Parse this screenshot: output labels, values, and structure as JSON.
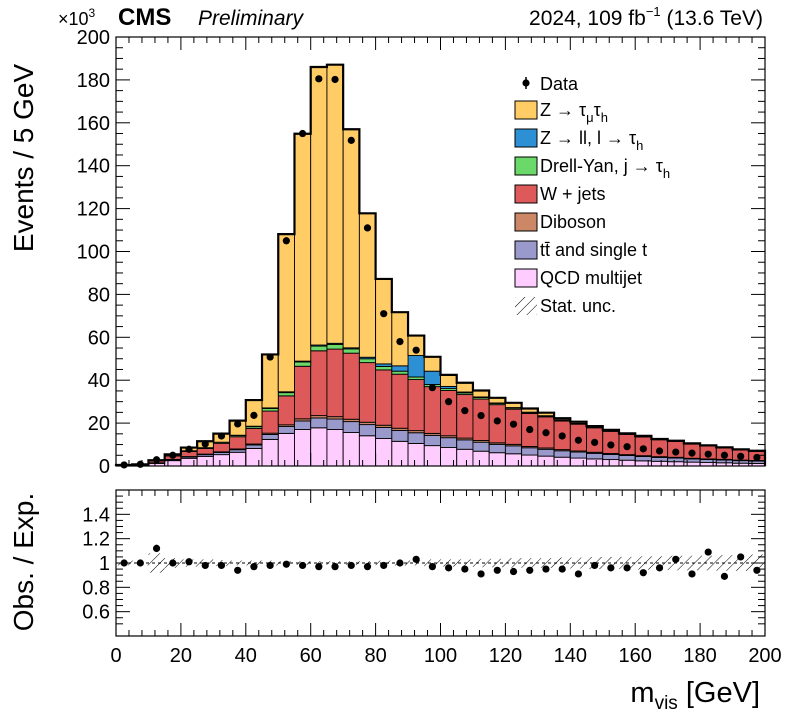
{
  "header": {
    "exp": "CMS",
    "status": "Preliminary",
    "lumi": "2024, 109 fb",
    "lumi_sup": "−1",
    "energy": " (13.6 TeV)",
    "multiplier": "×10",
    "multiplier_exp": "3"
  },
  "chart_data": [
    {
      "type": "bar",
      "stacked": true,
      "title": "",
      "xlabel": "",
      "ylabel": "Events / 5 GeV",
      "ylim": [
        0,
        200
      ],
      "y_scale": 1000,
      "yticks": [
        0,
        20,
        40,
        60,
        80,
        100,
        120,
        140,
        160,
        180,
        200
      ],
      "bin_edges": [
        0,
        5,
        10,
        15,
        20,
        25,
        30,
        35,
        40,
        45,
        50,
        55,
        60,
        65,
        70,
        75,
        80,
        85,
        90,
        95,
        100,
        105,
        110,
        115,
        120,
        125,
        130,
        135,
        140,
        145,
        150,
        155,
        160,
        165,
        170,
        175,
        180,
        185,
        190,
        195,
        200
      ],
      "series": [
        {
          "name": "QCD multijet",
          "key": "qcd",
          "color": "#ffccff",
          "values": [
            0.3,
            0.4,
            1.2,
            2.5,
            3.6,
            4.5,
            5.3,
            6.4,
            8.2,
            12.4,
            15.2,
            17.0,
            17.8,
            17.0,
            15.6,
            14.1,
            12.8,
            11.5,
            10.5,
            9.5,
            8.6,
            7.8,
            6.9,
            6.2,
            5.7,
            5.1,
            4.6,
            4.1,
            3.7,
            3.3,
            3.0,
            2.7,
            2.4,
            2.2,
            2.0,
            1.8,
            1.6,
            1.5,
            1.3,
            1.2
          ]
        },
        {
          "name": "tt̄ and single t",
          "key": "top",
          "color": "#9999cc",
          "values": [
            0.05,
            0.1,
            0.2,
            0.4,
            0.6,
            0.8,
            1.0,
            1.2,
            1.6,
            2.3,
            3.2,
            4.0,
            4.6,
            4.9,
            5.1,
            5.2,
            5.2,
            5.1,
            5.0,
            4.8,
            4.6,
            4.4,
            4.2,
            3.9,
            3.7,
            3.4,
            3.2,
            3.0,
            2.8,
            2.6,
            2.4,
            2.2,
            2.0,
            1.8,
            1.7,
            1.5,
            1.4,
            1.3,
            1.2,
            1.1
          ]
        },
        {
          "name": "Diboson",
          "key": "vv",
          "color": "#cc8866",
          "values": [
            0.02,
            0.03,
            0.08,
            0.15,
            0.2,
            0.25,
            0.3,
            0.35,
            0.45,
            0.6,
            0.8,
            1.0,
            1.1,
            1.1,
            1.1,
            1.1,
            1.0,
            1.0,
            1.0,
            0.9,
            0.9,
            0.8,
            0.8,
            0.7,
            0.7,
            0.6,
            0.6,
            0.55,
            0.5,
            0.5,
            0.45,
            0.4,
            0.4,
            0.35,
            0.35,
            0.3,
            0.3,
            0.3,
            0.25,
            0.25
          ]
        },
        {
          "name": "W + jets",
          "key": "wj",
          "color": "#de5a5a",
          "values": [
            0.1,
            0.2,
            0.9,
            1.6,
            2.4,
            2.6,
            4.0,
            5.7,
            7.3,
            10.3,
            13.5,
            24.5,
            30.2,
            31.5,
            30.8,
            27.8,
            25.8,
            25.2,
            23.8,
            21.8,
            21.1,
            20.3,
            19.3,
            17.8,
            16.4,
            15.4,
            14.5,
            13.3,
            12.5,
            11.4,
            10.3,
            9.4,
            8.7,
            7.9,
            7.4,
            6.6,
            6.0,
            5.3,
            4.7,
            4.3
          ]
        },
        {
          "name": "Drell-Yan, j → τh",
          "key": "dyj",
          "color": "#6bd969",
          "values": [
            0.02,
            0.05,
            0.1,
            0.2,
            0.3,
            0.4,
            0.5,
            0.6,
            0.8,
            1.2,
            1.5,
            2.0,
            2.2,
            2.2,
            2.0,
            1.8,
            1.6,
            1.4,
            1.2,
            1.0,
            0.9,
            0.8,
            0.7,
            0.6,
            0.55,
            0.5,
            0.45,
            0.4,
            0.35,
            0.3,
            0.3,
            0.25,
            0.25,
            0.2,
            0.2,
            0.2,
            0.15,
            0.15,
            0.15,
            0.1
          ]
        },
        {
          "name": "Z → ll, l → τh",
          "key": "zl",
          "color": "#2d8fd4",
          "values": [
            0,
            0,
            0,
            0,
            0,
            0,
            0,
            0.1,
            0.2,
            0.3,
            0.4,
            0.4,
            0.5,
            0.5,
            0.5,
            0.7,
            1.2,
            2.5,
            10.0,
            6.2,
            1.0,
            0.4,
            0.3,
            0.2,
            0.2,
            0.1,
            0.1,
            0.1,
            0.1,
            0.1,
            0.1,
            0.1,
            0.1,
            0.05,
            0.05,
            0.05,
            0.05,
            0.05,
            0.05,
            0.05
          ]
        },
        {
          "name": "Z → τμτh",
          "key": "ztt",
          "color": "#ffcc66",
          "values": [
            0,
            0,
            0.2,
            0.6,
            1.5,
            3.0,
            4.0,
            6.8,
            12.2,
            24.9,
            73.5,
            106.0,
            129.6,
            129.9,
            101.9,
            67.1,
            39.6,
            25.0,
            9.3,
            6.7,
            5.4,
            4.3,
            3.0,
            2.4,
            2.2,
            1.7,
            1.4,
            0.8,
            0.7,
            0.4,
            0.3,
            0.2,
            0.2,
            0.1,
            0.1,
            0.1,
            0.1,
            0.1,
            0.1,
            0.1
          ]
        }
      ],
      "data": {
        "name": "Data",
        "x": [
          2.5,
          7.5,
          12.5,
          17.5,
          22.5,
          27.5,
          32.5,
          37.5,
          42.5,
          47.5,
          52.5,
          57.5,
          62.5,
          67.5,
          72.5,
          77.5,
          82.5,
          87.5,
          92.5,
          97.5,
          102.5,
          107.5,
          112.5,
          117.5,
          122.5,
          127.5,
          132.5,
          137.5,
          142.5,
          147.5,
          152.5,
          157.5,
          162.5,
          167.5,
          172.5,
          177.5,
          182.5,
          187.5,
          192.5,
          197.5
        ],
        "y": [
          0.5,
          0.8,
          2.9,
          5.0,
          7.8,
          10.3,
          14.0,
          19.6,
          23.6,
          50.8,
          105.0,
          155.0,
          180.5,
          180.2,
          151.8,
          111.0,
          71.0,
          58.0,
          54.0,
          36.5,
          30.0,
          25.8,
          23.5,
          21.0,
          19.5,
          17.0,
          15.5,
          14.0,
          12.0,
          11.0,
          9.8,
          9.0,
          8.0,
          7.0,
          6.5,
          6.0,
          5.5,
          5.0,
          4.5,
          4.0
        ]
      },
      "stat_unc_label": "Stat. unc.",
      "legend_loc": "top-right"
    },
    {
      "type": "scatter",
      "title": "",
      "xlabel": "m",
      "xlabel_sub": "vis",
      "xlabel_unit": " [GeV]",
      "ylabel": "Obs. / Exp.",
      "xlim": [
        0,
        200
      ],
      "ylim": [
        0.4,
        1.6
      ],
      "xticks": [
        0,
        20,
        40,
        60,
        80,
        100,
        120,
        140,
        160,
        180,
        200
      ],
      "ytick_labels": [
        "0.6",
        "0.8",
        "1",
        "1.2",
        "1.4"
      ],
      "yticks": [
        0.6,
        0.8,
        1.0,
        1.2,
        1.4
      ],
      "reference_line": 1.0,
      "ratio": {
        "x": [
          2.5,
          7.5,
          12.5,
          17.5,
          22.5,
          27.5,
          32.5,
          37.5,
          42.5,
          47.5,
          52.5,
          57.5,
          62.5,
          67.5,
          72.5,
          77.5,
          82.5,
          87.5,
          92.5,
          97.5,
          102.5,
          107.5,
          112.5,
          117.5,
          122.5,
          127.5,
          132.5,
          137.5,
          142.5,
          147.5,
          152.5,
          157.5,
          162.5,
          167.5,
          172.5,
          177.5,
          182.5,
          187.5,
          192.5,
          197.5
        ],
        "y": [
          1.0,
          1.0,
          1.12,
          1.0,
          1.01,
          0.98,
          0.98,
          0.94,
          0.97,
          0.98,
          0.99,
          0.98,
          0.97,
          0.97,
          0.98,
          0.97,
          0.98,
          1.0,
          1.03,
          0.97,
          0.96,
          0.95,
          0.91,
          0.94,
          0.93,
          0.94,
          0.95,
          0.95,
          0.91,
          0.98,
          0.96,
          0.96,
          0.92,
          0.96,
          1.03,
          0.91,
          1.09,
          0.89,
          1.05,
          0.94
        ],
        "yerr": [
          0,
          0,
          0.03,
          0,
          0,
          0,
          0,
          0,
          0,
          0,
          0,
          0,
          0,
          0,
          0,
          0,
          0,
          0,
          0,
          0,
          0,
          0,
          0,
          0,
          0,
          0,
          0,
          0,
          0,
          0,
          0,
          0,
          0,
          0,
          0,
          0,
          0,
          0,
          0,
          0
        ]
      },
      "unc_band": [
        0.02,
        0.02,
        0.08,
        0.04,
        0.03,
        0.03,
        0.025,
        0.02,
        0.02,
        0.02,
        0.015,
        0.015,
        0.015,
        0.015,
        0.015,
        0.015,
        0.02,
        0.02,
        0.02,
        0.03,
        0.03,
        0.03,
        0.035,
        0.035,
        0.04,
        0.04,
        0.04,
        0.045,
        0.045,
        0.05,
        0.05,
        0.05,
        0.055,
        0.055,
        0.06,
        0.06,
        0.06,
        0.065,
        0.065,
        0.07
      ]
    }
  ]
}
